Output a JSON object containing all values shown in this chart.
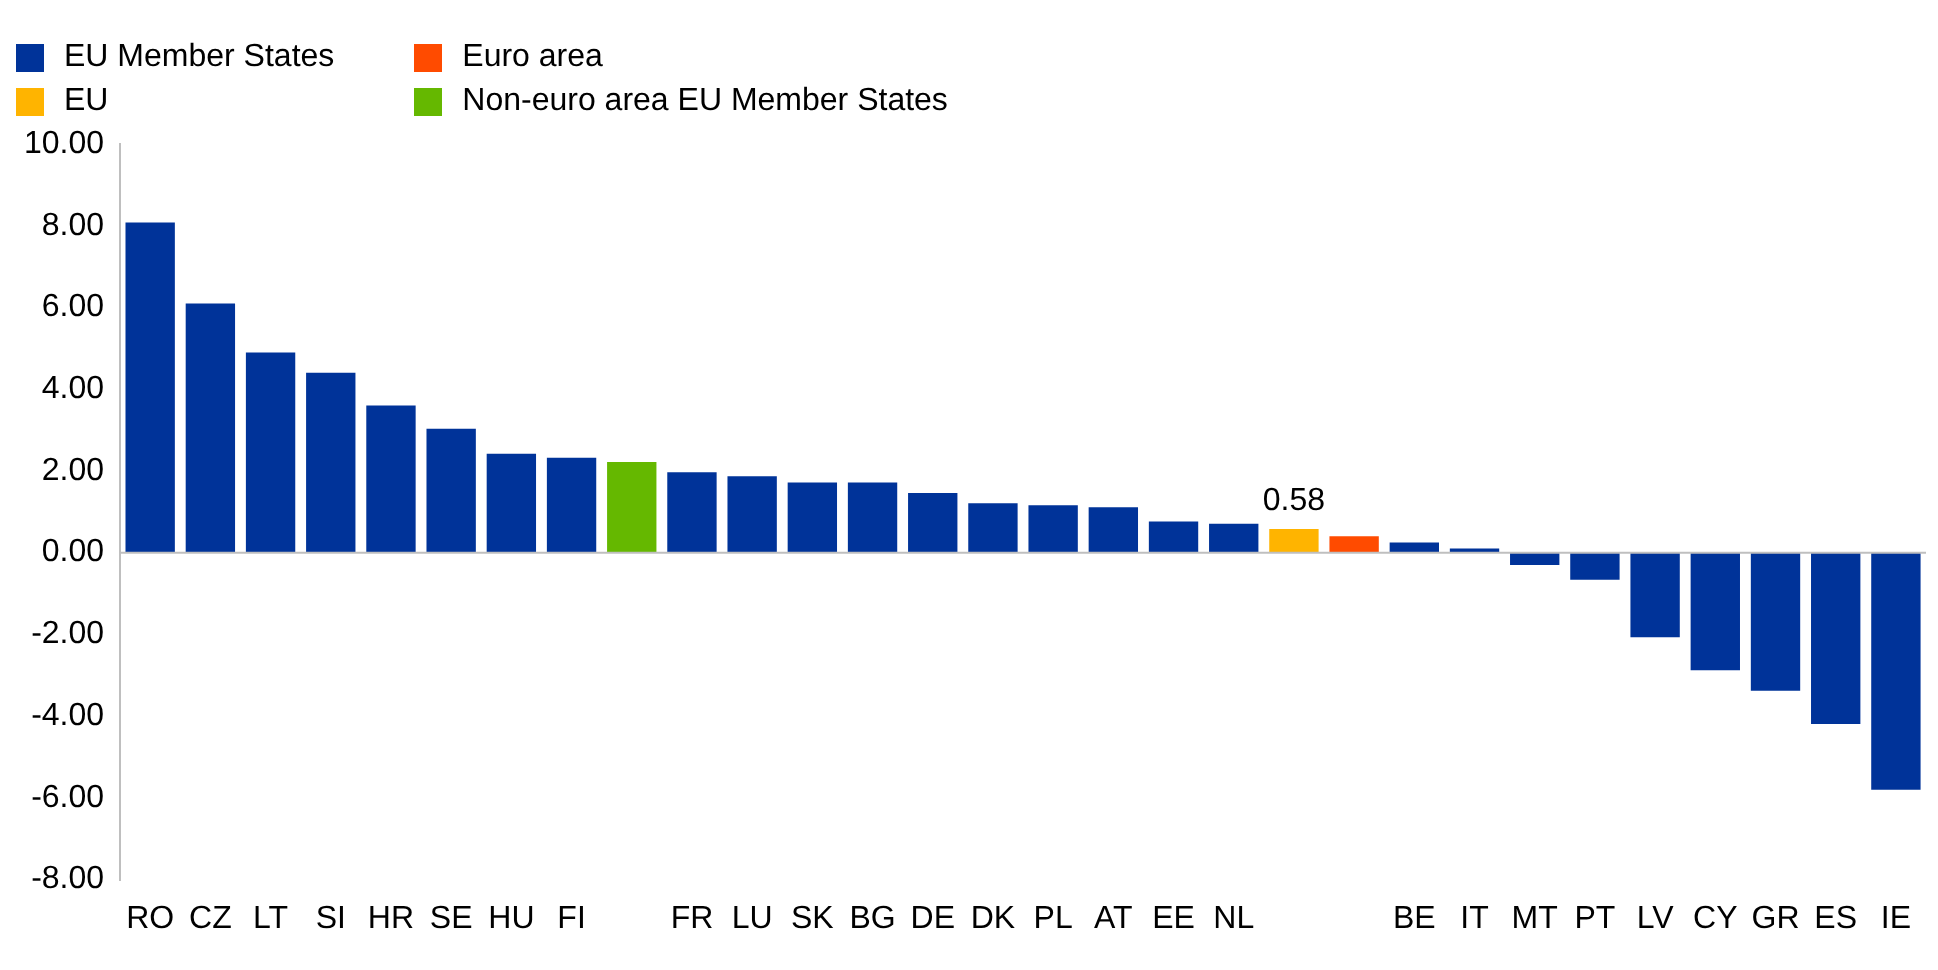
{
  "chart_data": {
    "type": "bar",
    "categories": [
      "RO",
      "CZ",
      "LT",
      "SI",
      "HR",
      "SE",
      "HU",
      "FI",
      null,
      "FR",
      "LU",
      "SK",
      "BG",
      "DE",
      "DK",
      "PL",
      "AT",
      "EE",
      "NL",
      null,
      null,
      "BE",
      "IT",
      "MT",
      "PT",
      "LV",
      "CY",
      "GR",
      "ES",
      "IE"
    ],
    "series": [
      {
        "name": "EU Member States",
        "color": "#003399",
        "values": [
          8.08,
          6.1,
          4.9,
          4.4,
          3.6,
          3.03,
          2.42,
          2.32,
          null,
          1.97,
          1.87,
          1.72,
          1.72,
          1.46,
          1.21,
          1.16,
          1.11,
          0.76,
          0.71,
          null,
          null,
          0.25,
          0.1,
          -0.3,
          -0.66,
          -2.07,
          -2.88,
          -3.38,
          -4.19,
          -5.8
        ]
      },
      {
        "name": "EU",
        "color": "#ffb400",
        "values": [
          null,
          null,
          null,
          null,
          null,
          null,
          null,
          null,
          null,
          null,
          null,
          null,
          null,
          null,
          null,
          null,
          null,
          null,
          null,
          0.58,
          null,
          null,
          null,
          null,
          null,
          null,
          null,
          null,
          null,
          null
        ],
        "value_labels": [
          null,
          null,
          null,
          null,
          null,
          null,
          null,
          null,
          null,
          null,
          null,
          null,
          null,
          null,
          null,
          null,
          null,
          null,
          null,
          "0.58",
          null,
          null,
          null,
          null,
          null,
          null,
          null,
          null,
          null,
          null
        ]
      },
      {
        "name": "Euro area",
        "color": "#ff4b00",
        "values": [
          null,
          null,
          null,
          null,
          null,
          null,
          null,
          null,
          null,
          null,
          null,
          null,
          null,
          null,
          null,
          null,
          null,
          null,
          null,
          null,
          0.4,
          null,
          null,
          null,
          null,
          null,
          null,
          null,
          null,
          null
        ]
      },
      {
        "name": "Non-euro area EU Member States",
        "color": "#65b800",
        "values": [
          null,
          null,
          null,
          null,
          null,
          null,
          null,
          null,
          2.22,
          null,
          null,
          null,
          null,
          null,
          null,
          null,
          null,
          null,
          null,
          null,
          null,
          null,
          null,
          null,
          null,
          null,
          null,
          null,
          null,
          null
        ]
      }
    ],
    "ylim": [
      -8,
      10
    ],
    "yticks": [
      {
        "value": -8,
        "label": "-8.00"
      },
      {
        "value": -6,
        "label": "-6.00"
      },
      {
        "value": -4,
        "label": "-4.00"
      },
      {
        "value": -2,
        "label": "-2.00"
      },
      {
        "value": 0,
        "label": "0.00"
      },
      {
        "value": 2,
        "label": "2.00"
      },
      {
        "value": 4,
        "label": "4.00"
      },
      {
        "value": 6,
        "label": "6.00"
      },
      {
        "value": 8,
        "label": "8.00"
      },
      {
        "value": 10,
        "label": "10.00"
      }
    ],
    "ref_lines": [
      {
        "axis": "y",
        "value": 0,
        "color": "#bfbfbf"
      }
    ],
    "legend": "top left"
  }
}
